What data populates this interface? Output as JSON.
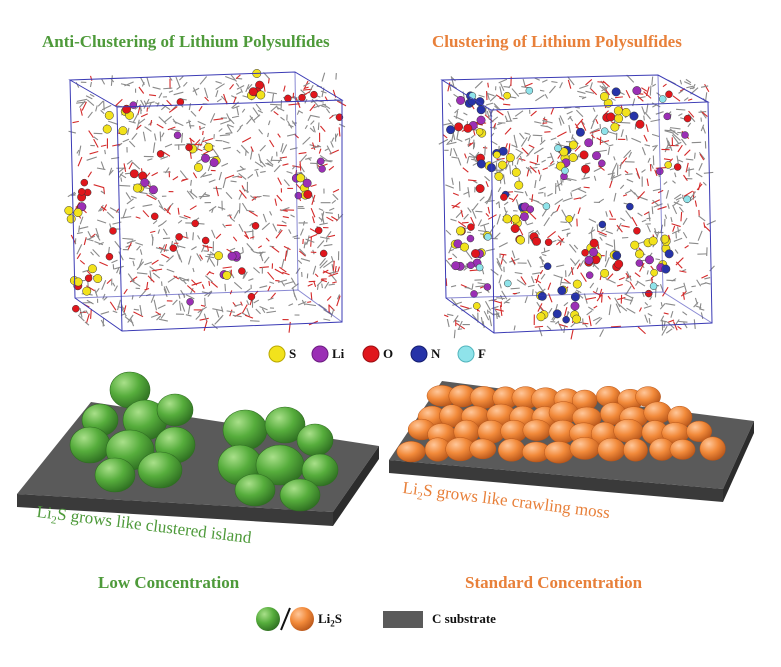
{
  "titles": {
    "left": "Anti-Clustering of Lithium Polysulfides",
    "right": "Clustering of Lithium Polysulfides"
  },
  "atom_legend": [
    {
      "symbol": "S",
      "color": "#f2e21c"
    },
    {
      "symbol": "Li",
      "color": "#9b2fb5"
    },
    {
      "symbol": "O",
      "color": "#e0161c"
    },
    {
      "symbol": "N",
      "color": "#2633a8"
    },
    {
      "symbol": "F",
      "color": "#8fe3ea"
    }
  ],
  "captions": {
    "left_prefix": "Li",
    "left_sub": "2",
    "left_suffix": "S grows like clustered island",
    "right_prefix": "Li",
    "right_sub": "2",
    "right_suffix": "S grows like crawling moss"
  },
  "conditions": {
    "left": "Low Concentration",
    "right": "Standard Concentration"
  },
  "bottom_legend": {
    "li2s_prefix": "Li",
    "li2s_sub": "2",
    "li2s_suffix": "S",
    "substrate": "C substrate"
  },
  "colors": {
    "green": "#4e9a3a",
    "orange": "#e8803a",
    "substrate": "#5a5a5a",
    "box_line": "#3b3bb5"
  }
}
